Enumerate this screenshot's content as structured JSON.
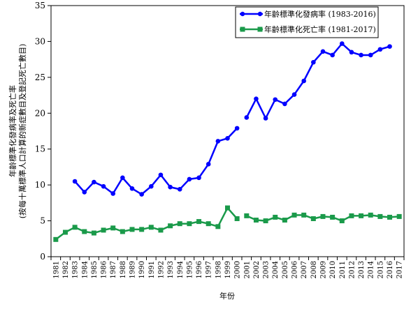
{
  "chart_data": {
    "type": "line",
    "xlabel": "年份",
    "ylabel": [
      "年齡標準化發病率及死亡率",
      "(按每十萬標準人口計算的新症數目及登記死亡數目)"
    ],
    "ylim": [
      0,
      35
    ],
    "yticks": [
      0,
      5,
      10,
      15,
      20,
      25,
      30,
      35
    ],
    "grid": false,
    "legend_position": "top-right",
    "categories": [
      "1981",
      "1982",
      "1983",
      "1984",
      "1985",
      "1986",
      "1987",
      "1988",
      "1989",
      "1990",
      "1991",
      "1992",
      "1993",
      "1994",
      "1995",
      "1996",
      "1997",
      "1998",
      "1999",
      "2000",
      "2001",
      "2002",
      "2003",
      "2004",
      "2005",
      "2006",
      "2007",
      "2008",
      "2009",
      "2010",
      "2011",
      "2012",
      "2013",
      "2014",
      "2015",
      "2016",
      "2017"
    ],
    "series": [
      {
        "name": "年齡標準化發病率 (1983-2016)",
        "color": "#0000ff",
        "marker": "circle",
        "values": [
          null,
          null,
          10.5,
          9.0,
          10.4,
          9.8,
          8.8,
          11.0,
          9.5,
          8.7,
          9.8,
          11.4,
          9.7,
          9.4,
          10.8,
          11.0,
          12.9,
          16.1,
          16.5,
          17.9,
          19.4,
          22.0,
          19.3,
          21.9,
          21.3,
          22.6,
          24.5,
          27.1,
          28.6,
          28.1,
          29.7,
          28.5,
          28.1,
          28.1,
          28.9,
          29.3,
          null
        ]
      },
      {
        "name": "年齡標準化死亡率 (1981-2017)",
        "color": "#1a9a4a",
        "marker": "square",
        "values": [
          2.4,
          3.4,
          4.1,
          3.5,
          3.3,
          3.7,
          4.0,
          3.5,
          3.8,
          3.8,
          4.1,
          3.7,
          4.3,
          4.6,
          4.6,
          4.9,
          4.6,
          4.2,
          6.8,
          5.3,
          5.7,
          5.1,
          5.0,
          5.5,
          5.1,
          5.8,
          5.8,
          5.3,
          5.6,
          5.5,
          5.0,
          5.7,
          5.7,
          5.8,
          5.6,
          5.5,
          5.6
        ]
      }
    ],
    "segment_breaks": [
      {
        "series": 0,
        "between": [
          "2000",
          "2001"
        ]
      },
      {
        "series": 1,
        "between": [
          "2000",
          "2001"
        ]
      }
    ]
  }
}
